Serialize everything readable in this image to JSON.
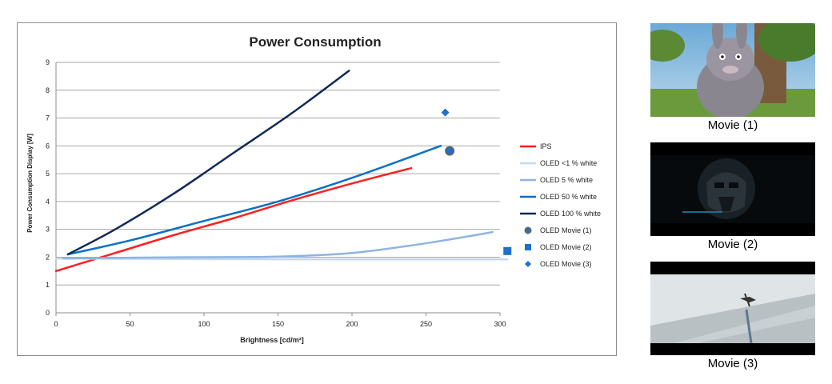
{
  "chart_data": {
    "type": "line",
    "title": "Power Consumption",
    "xlabel": "Brightness [cd/m²]",
    "ylabel": "Power Consumption Display [W]",
    "xlim": [
      0,
      300
    ],
    "ylim": [
      0,
      9
    ],
    "xticks": [
      "0",
      "50",
      "100",
      "150",
      "200",
      "250",
      "300"
    ],
    "yticks": [
      "0",
      "1",
      "2",
      "3",
      "4",
      "5",
      "6",
      "7",
      "8",
      "9"
    ],
    "grid": "horizontal",
    "legend": "right",
    "series": [
      {
        "name": "IPS",
        "kind": "line",
        "color": "#ff1f1f",
        "x": [
          0,
          40,
          80,
          120,
          160,
          200,
          240
        ],
        "y": [
          1.5,
          2.15,
          2.8,
          3.4,
          4.05,
          4.65,
          5.2
        ]
      },
      {
        "name": "OLED <1 % white",
        "kind": "line",
        "color": "#c4d8ee",
        "x": [
          0,
          100,
          200,
          305
        ],
        "y": [
          1.95,
          1.93,
          1.92,
          1.92
        ]
      },
      {
        "name": "OLED 5 % white",
        "kind": "line",
        "color": "#8fb4e3",
        "x": [
          5,
          50,
          100,
          150,
          200,
          250,
          295
        ],
        "y": [
          1.95,
          1.98,
          2.0,
          2.02,
          2.15,
          2.5,
          2.9
        ]
      },
      {
        "name": "OLED 50 % white",
        "kind": "line",
        "color": "#0a70c8",
        "x": [
          8,
          50,
          100,
          150,
          200,
          260
        ],
        "y": [
          2.1,
          2.6,
          3.3,
          4.0,
          4.85,
          6.0
        ]
      },
      {
        "name": "OLED 100 % white",
        "kind": "line",
        "color": "#0f2a55",
        "x": [
          8,
          40,
          80,
          120,
          160,
          198
        ],
        "y": [
          2.1,
          3.0,
          4.3,
          5.75,
          7.2,
          8.7
        ]
      },
      {
        "name": "OLED Movie (1)",
        "kind": "marker",
        "marker": "circle",
        "color": "#2b6cb5",
        "x": [
          266
        ],
        "y": [
          5.82
        ]
      },
      {
        "name": "OLED Movie (2)",
        "kind": "marker",
        "marker": "square",
        "color": "#1f6fcc",
        "x": [
          305
        ],
        "y": [
          2.22
        ]
      },
      {
        "name": "OLED Movie (3)",
        "kind": "marker",
        "marker": "diamond",
        "color": "#1f6fcc",
        "x": [
          263
        ],
        "y": [
          7.2
        ]
      }
    ]
  },
  "movies": [
    {
      "label": "Movie (1)",
      "icon": "animated-rabbit-scene-image"
    },
    {
      "label": "Movie (2)",
      "icon": "dark-helmet-scene-image"
    },
    {
      "label": "Movie (3)",
      "icon": "aircraft-sky-scene-image"
    }
  ]
}
